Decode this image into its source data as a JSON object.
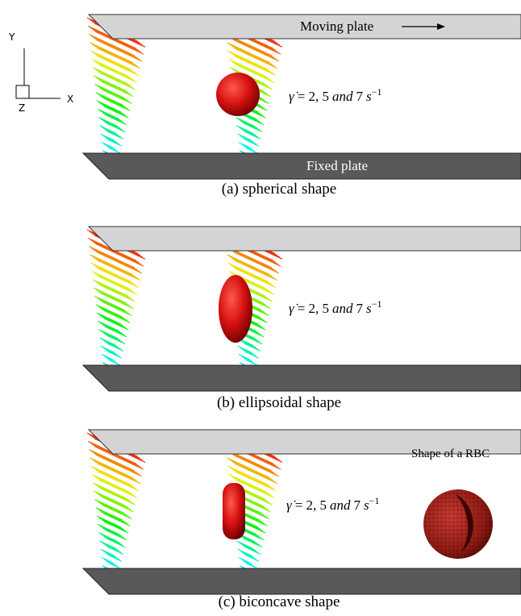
{
  "axes": {
    "y": "Y",
    "x": "X",
    "z": "Z"
  },
  "plates": {
    "top": "Moving plate",
    "bottom": "Fixed plate"
  },
  "equation": {
    "lhs": "γ̇",
    "rhs": "= 2, 5",
    "conj": "and",
    "last": "7",
    "unit": "s",
    "exponent": "−1"
  },
  "panels": [
    {
      "caption": "(a) spherical shape"
    },
    {
      "caption": "(b) ellipsoidal shape"
    },
    {
      "caption": "(c) biconcave shape",
      "inset": "Shape of a RBC"
    }
  ]
}
